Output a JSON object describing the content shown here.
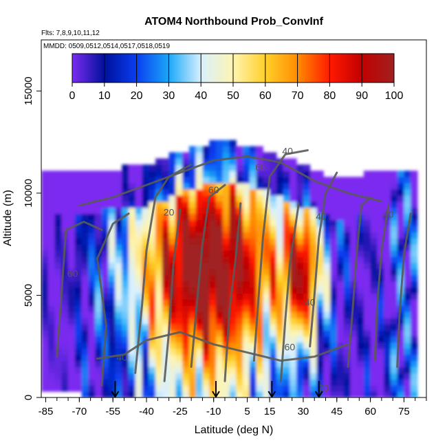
{
  "chart_data": {
    "type": "heatmap",
    "title": "ATOM4 Northbound Prob_ConvInf",
    "subtitle_flights": "Flts: 7,8,9,10,11,12",
    "subtitle_dates": "MMDD: 0509,0512,0514,0517,0518,0519",
    "xlabel": "Latitude (deg N)",
    "ylabel": "Altitude (m)",
    "xlim": [
      -87,
      85
    ],
    "ylim": [
      0,
      17500
    ],
    "x_ticks": [
      -85,
      -70,
      -55,
      -40,
      -25,
      -10,
      5,
      15,
      30,
      45,
      60,
      75
    ],
    "x_tick_labels": [
      "-85",
      "-70",
      "-55",
      "-40",
      "-25",
      "-10",
      "5",
      "15",
      "30",
      "45",
      "60",
      "75"
    ],
    "y_ticks": [
      0,
      5000,
      10000,
      15000
    ],
    "y_tick_labels": [
      "0",
      "5000",
      "10000",
      "15000"
    ],
    "colorbar": {
      "range": [
        0,
        100
      ],
      "ticks": [
        0,
        10,
        20,
        30,
        40,
        50,
        60,
        70,
        80,
        90,
        100
      ],
      "tick_labels": [
        "0",
        "10",
        "20",
        "30",
        "40",
        "50",
        "60",
        "70",
        "80",
        "90",
        "100"
      ],
      "colors": [
        "#7b2cf0",
        "#00109c",
        "#0a3ef0",
        "#1aa8f8",
        "#d8f0ff",
        "#fff4b0",
        "#ffd02a",
        "#ff8c00",
        "#ff1a00",
        "#c20000",
        "#a02020"
      ]
    },
    "contour_labels": [
      {
        "text": "20",
        "lat": -30,
        "alt": 8900
      },
      {
        "text": "40",
        "lat": -51,
        "alt": 1800
      },
      {
        "text": "60",
        "lat": -73,
        "alt": 5900
      },
      {
        "text": "60",
        "lat": -10,
        "alt": 10000
      },
      {
        "text": "60",
        "lat": 11,
        "alt": 11100
      },
      {
        "text": "40",
        "lat": 23,
        "alt": 11900
      },
      {
        "text": "60",
        "lat": 24,
        "alt": 2300
      },
      {
        "text": "40",
        "lat": 38,
        "alt": 8700
      },
      {
        "text": "40",
        "lat": 33,
        "alt": 4500
      },
      {
        "text": "20",
        "lat": 39,
        "alt": 300
      },
      {
        "text": "40",
        "lat": 68,
        "alt": 8800
      }
    ],
    "flight_arrows_lat": [
      -54,
      -9,
      16,
      37
    ],
    "summary": "Probability of convective influence (%) as a function of latitude and altitude; high values (80-100) dominate between about -50 and 30 deg N from 2000 to 11000 m, with lower values near the edges."
  }
}
